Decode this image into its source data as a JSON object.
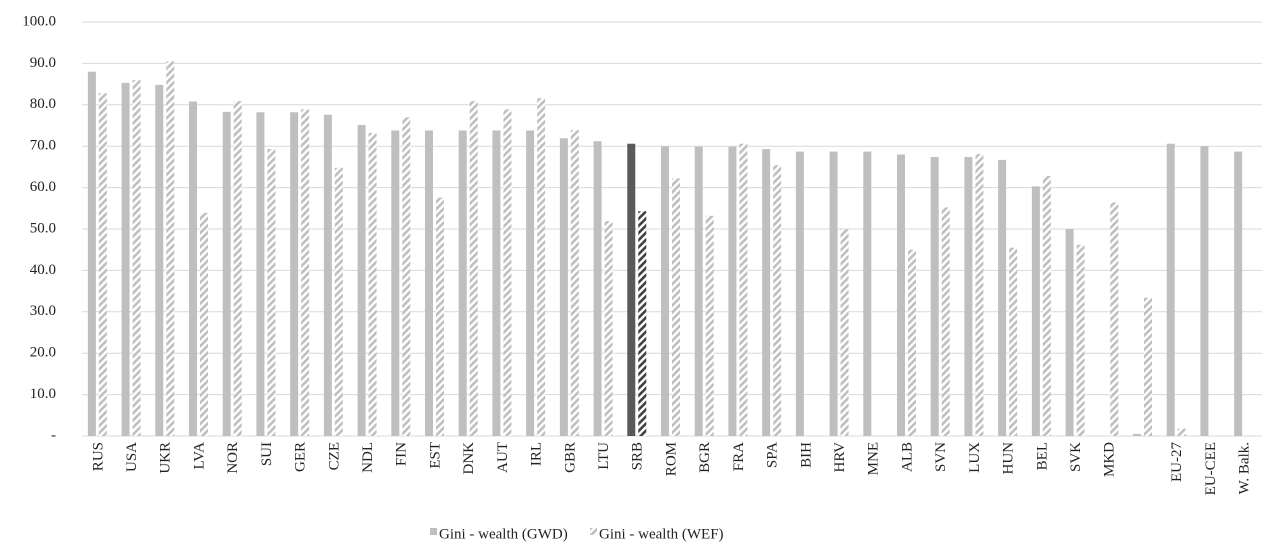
{
  "chart_data": {
    "type": "bar",
    "categories": [
      "RUS",
      "USA",
      "UKR",
      "LVA",
      "NOR",
      "SUI",
      "GER",
      "CZE",
      "NDL",
      "FIN",
      "EST",
      "DNK",
      "AUT",
      "IRL",
      "GBR",
      "LTU",
      "SRB",
      "ROM",
      "BGR",
      "FRA",
      "SPA",
      "BIH",
      "HRV",
      "MNE",
      "ALB",
      "SVN",
      "LUX",
      "HUN",
      "BEL",
      "SVK",
      "MKD",
      null,
      "EU-27",
      "EU-CEE",
      "W. Balk."
    ],
    "series": [
      {
        "name": "Gini - wealth (GWD)",
        "color": "#bfbfbf",
        "highlight_color": "#595959",
        "hatched": false,
        "values": [
          88.0,
          85.3,
          84.8,
          80.8,
          78.3,
          78.2,
          78.2,
          77.6,
          75.1,
          73.8,
          73.8,
          73.8,
          73.8,
          73.8,
          71.9,
          71.2,
          70.6,
          70.0,
          69.9,
          69.9,
          69.3,
          68.7,
          68.7,
          68.7,
          68.0,
          67.4,
          67.4,
          66.7,
          60.3,
          50.0,
          null,
          0.5,
          70.6,
          70.0,
          68.7
        ]
      },
      {
        "name": "Gini - wealth (WEF)",
        "color": "#bfbfbf",
        "highlight_color": "#404040",
        "hatched": true,
        "values": [
          82.8,
          86.0,
          90.5,
          53.9,
          80.9,
          69.3,
          78.9,
          64.8,
          73.2,
          77.0,
          57.6,
          80.9,
          78.9,
          81.6,
          73.9,
          51.9,
          54.3,
          62.2,
          53.2,
          70.6,
          65.4,
          null,
          49.9,
          null,
          45.0,
          55.2,
          68.1,
          45.5,
          62.8,
          46.2,
          56.4,
          33.4,
          1.8,
          null,
          null
        ]
      }
    ],
    "highlight_categories": [
      "SRB"
    ],
    "ylim": [
      0,
      100
    ],
    "yticks": [
      {
        "value": 0,
        "label": "-"
      },
      {
        "value": 10,
        "label": "10.0"
      },
      {
        "value": 20,
        "label": "20.0"
      },
      {
        "value": 30,
        "label": "30.0"
      },
      {
        "value": 40,
        "label": "40.0"
      },
      {
        "value": 50,
        "label": "50.0"
      },
      {
        "value": 60,
        "label": "60.0"
      },
      {
        "value": 70,
        "label": "70.0"
      },
      {
        "value": 80,
        "label": "80.0"
      },
      {
        "value": 90,
        "label": "90.0"
      },
      {
        "value": 100,
        "label": "100.0"
      }
    ],
    "grid": true,
    "legend": "bottom"
  }
}
